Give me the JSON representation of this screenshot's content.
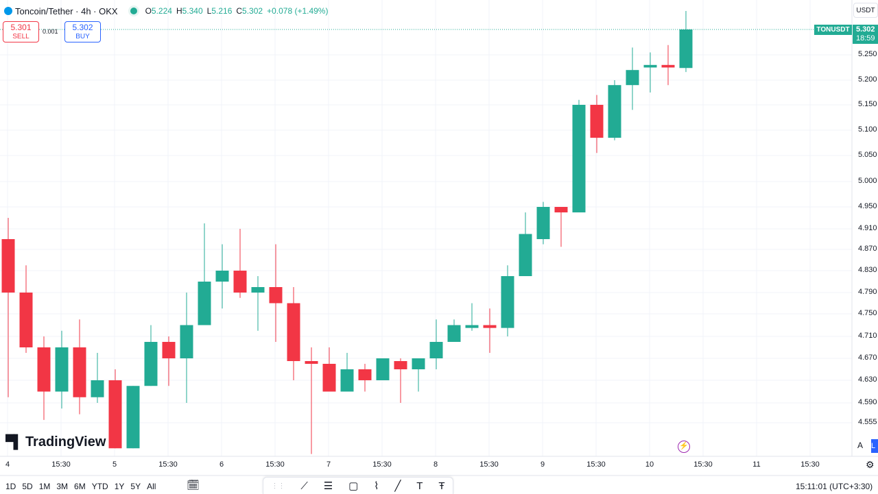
{
  "header": {
    "symbol": "Toncoin/Tether · 4h · OKX",
    "open_label": "O",
    "open": "5.224",
    "high_label": "H",
    "high": "5.340",
    "low_label": "L",
    "low": "5.216",
    "close_label": "C",
    "close": "5.302",
    "change": "+0.078 (+1.49%)"
  },
  "trade": {
    "sell_price": "5.301",
    "sell_label": "SELL",
    "spread": "0.001",
    "buy_price": "5.302",
    "buy_label": "BUY"
  },
  "currency": "USDT",
  "price_tag": {
    "ticker": "TONUSDT",
    "price": "5.302",
    "countdown": "18:59"
  },
  "logo": "TradingView",
  "bottom": {
    "ranges": [
      "1D",
      "5D",
      "1M",
      "3M",
      "6M",
      "YTD",
      "1Y",
      "5Y",
      "All"
    ],
    "clock": "15:11:01 (UTC+3:30)",
    "auto_label": "A",
    "log_label": "L"
  },
  "colors": {
    "up": "#22ab94",
    "down": "#f23645",
    "buy": "#2962ff",
    "grid": "#f0f3fa"
  },
  "chart_data": {
    "type": "candlestick",
    "title": "Toncoin/Tether · 4h · OKX",
    "y_axis_ticks": [
      "5.250",
      "5.200",
      "5.150",
      "5.100",
      "5.050",
      "5.000",
      "4.950",
      "4.910",
      "4.870",
      "4.830",
      "4.790",
      "4.750",
      "4.710",
      "4.670",
      "4.630",
      "4.590",
      "4.555"
    ],
    "x_axis_ticks": [
      "4",
      "15:30",
      "5",
      "15:30",
      "6",
      "15:30",
      "7",
      "15:30",
      "8",
      "15:30",
      "9",
      "15:30",
      "10",
      "15:30",
      "11",
      "15:30"
    ],
    "candles": [
      {
        "o": 4.89,
        "h": 4.93,
        "l": 4.6,
        "c": 4.79
      },
      {
        "o": 4.79,
        "h": 4.84,
        "l": 4.68,
        "c": 4.69
      },
      {
        "o": 4.69,
        "h": 4.71,
        "l": 4.56,
        "c": 4.61
      },
      {
        "o": 4.61,
        "h": 4.72,
        "l": 4.58,
        "c": 4.69
      },
      {
        "o": 4.69,
        "h": 4.74,
        "l": 4.57,
        "c": 4.6
      },
      {
        "o": 4.6,
        "h": 4.68,
        "l": 4.59,
        "c": 4.63
      },
      {
        "o": 4.63,
        "h": 4.65,
        "l": 4.51,
        "c": 4.51
      },
      {
        "o": 4.51,
        "h": 4.62,
        "l": 4.51,
        "c": 4.62
      },
      {
        "o": 4.62,
        "h": 4.73,
        "l": 4.62,
        "c": 4.7
      },
      {
        "o": 4.7,
        "h": 4.71,
        "l": 4.62,
        "c": 4.67
      },
      {
        "o": 4.67,
        "h": 4.79,
        "l": 4.59,
        "c": 4.73
      },
      {
        "o": 4.73,
        "h": 4.92,
        "l": 4.73,
        "c": 4.81
      },
      {
        "o": 4.81,
        "h": 4.88,
        "l": 4.76,
        "c": 4.83
      },
      {
        "o": 4.83,
        "h": 4.91,
        "l": 4.78,
        "c": 4.79
      },
      {
        "o": 4.79,
        "h": 4.82,
        "l": 4.72,
        "c": 4.8
      },
      {
        "o": 4.8,
        "h": 4.88,
        "l": 4.7,
        "c": 4.77
      },
      {
        "o": 4.77,
        "h": 4.8,
        "l": 4.63,
        "c": 4.665
      },
      {
        "o": 4.665,
        "h": 4.69,
        "l": 4.5,
        "c": 4.66
      },
      {
        "o": 4.66,
        "h": 4.69,
        "l": 4.61,
        "c": 4.61
      },
      {
        "o": 4.61,
        "h": 4.68,
        "l": 4.61,
        "c": 4.65
      },
      {
        "o": 4.65,
        "h": 4.66,
        "l": 4.61,
        "c": 4.63
      },
      {
        "o": 4.63,
        "h": 4.67,
        "l": 4.63,
        "c": 4.67
      },
      {
        "o": 4.665,
        "h": 4.67,
        "l": 4.59,
        "c": 4.65
      },
      {
        "o": 4.65,
        "h": 4.67,
        "l": 4.61,
        "c": 4.67
      },
      {
        "o": 4.67,
        "h": 4.74,
        "l": 4.65,
        "c": 4.7
      },
      {
        "o": 4.7,
        "h": 4.74,
        "l": 4.7,
        "c": 4.73
      },
      {
        "o": 4.725,
        "h": 4.77,
        "l": 4.72,
        "c": 4.73
      },
      {
        "o": 4.73,
        "h": 4.76,
        "l": 4.68,
        "c": 4.725
      },
      {
        "o": 4.725,
        "h": 4.84,
        "l": 4.71,
        "c": 4.82
      },
      {
        "o": 4.82,
        "h": 4.94,
        "l": 4.82,
        "c": 4.9
      },
      {
        "o": 4.89,
        "h": 4.96,
        "l": 4.88,
        "c": 4.95
      },
      {
        "o": 4.95,
        "h": 4.95,
        "l": 4.875,
        "c": 4.94
      },
      {
        "o": 4.94,
        "h": 5.16,
        "l": 4.94,
        "c": 5.15
      },
      {
        "o": 5.15,
        "h": 5.17,
        "l": 5.055,
        "c": 5.085
      },
      {
        "o": 5.085,
        "h": 5.2,
        "l": 5.08,
        "c": 5.19
      },
      {
        "o": 5.19,
        "h": 5.265,
        "l": 5.14,
        "c": 5.22
      },
      {
        "o": 5.225,
        "h": 5.255,
        "l": 5.175,
        "c": 5.23
      },
      {
        "o": 5.23,
        "h": 5.27,
        "l": 5.19,
        "c": 5.225
      },
      {
        "o": 5.224,
        "h": 5.34,
        "l": 5.216,
        "c": 5.302
      }
    ]
  }
}
